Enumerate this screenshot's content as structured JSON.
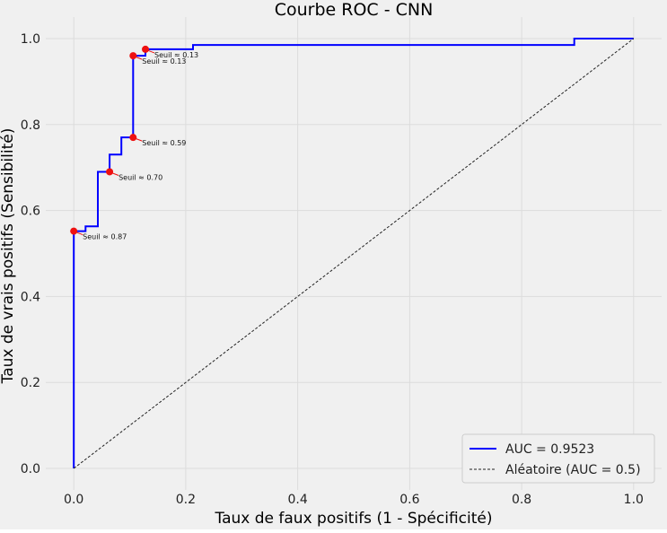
{
  "chart_data": {
    "type": "line",
    "title": "Courbe ROC - CNN",
    "xlabel": "Taux de faux positifs (1 - Spécificité)",
    "ylabel": "Taux de vrais positifs (Sensibilité)",
    "xlim": [
      -0.05,
      1.05
    ],
    "ylim": [
      -0.05,
      1.05
    ],
    "xticks": [
      0.0,
      0.2,
      0.4,
      0.6,
      0.8,
      1.0
    ],
    "xtick_labels": [
      "0.0",
      "0.2",
      "0.4",
      "0.6",
      "0.8",
      "1.0"
    ],
    "yticks": [
      0.0,
      0.2,
      0.4,
      0.6,
      0.8,
      1.0
    ],
    "ytick_labels": [
      "0.0",
      "0.2",
      "0.4",
      "0.6",
      "0.8",
      "1.0"
    ],
    "grid": true,
    "legend_position": "bottom-right",
    "series": [
      {
        "name": "AUC = 0.9523",
        "color": "#0000ff",
        "style": "solid-step",
        "x": [
          0.0,
          0.0,
          0.0,
          0.0,
          0.021,
          0.021,
          0.043,
          0.043,
          0.064,
          0.064,
          0.085,
          0.085,
          0.106,
          0.106,
          0.106,
          0.128,
          0.128,
          0.213,
          0.213,
          0.894,
          0.894,
          1.0
        ],
        "y": [
          0.0,
          0.552,
          0.552,
          0.552,
          0.552,
          0.563,
          0.563,
          0.69,
          0.69,
          0.73,
          0.73,
          0.77,
          0.77,
          0.96,
          0.96,
          0.96,
          0.975,
          0.975,
          0.985,
          0.985,
          1.0,
          1.0
        ]
      },
      {
        "name": "Aléatoire (AUC = 0.5)",
        "color": "#222222",
        "style": "dashed",
        "x": [
          0.0,
          1.0
        ],
        "y": [
          0.0,
          1.0
        ]
      }
    ],
    "threshold_points": [
      {
        "x": 0.0,
        "y": 0.552,
        "label": "Seuil ≈ 0.87"
      },
      {
        "x": 0.064,
        "y": 0.69,
        "label": "Seuil ≈ 0.70"
      },
      {
        "x": 0.106,
        "y": 0.77,
        "label": "Seuil ≈ 0.59"
      },
      {
        "x": 0.106,
        "y": 0.96,
        "label": "Seuil ≈ 0.13"
      },
      {
        "x": 0.128,
        "y": 0.975,
        "label": "Seuil ≈ 0.13"
      }
    ],
    "threshold_color": "#ee1111"
  }
}
